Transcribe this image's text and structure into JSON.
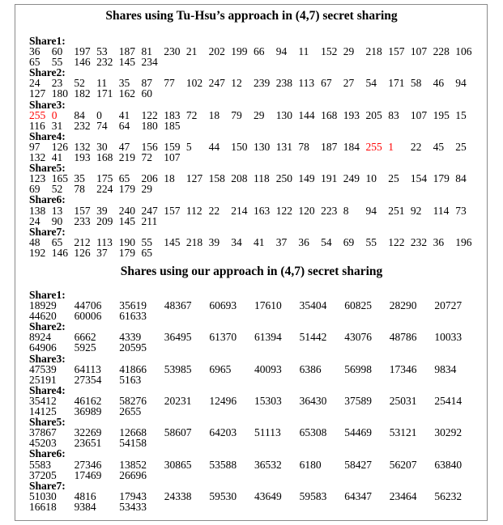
{
  "title_tuhsu": "Shares using Tu-Hsu’s approach in (4,7) secret sharing",
  "title_ours": "Shares using our approach in (4,7) secret sharing",
  "highlight_color": "#ff0000",
  "tuhsu_shares": [
    {
      "label": "Share1:",
      "values": [
        36,
        60,
        197,
        53,
        187,
        81,
        230,
        21,
        202,
        199,
        66,
        94,
        11,
        152,
        29,
        218,
        157,
        107,
        228,
        106,
        65,
        55,
        146,
        232,
        145,
        234
      ],
      "highlight": []
    },
    {
      "label": "Share2:",
      "values": [
        24,
        23,
        52,
        11,
        35,
        87,
        77,
        102,
        247,
        12,
        239,
        238,
        113,
        67,
        27,
        54,
        171,
        58,
        46,
        94,
        127,
        180,
        182,
        171,
        162,
        60
      ],
      "highlight": []
    },
    {
      "label": "Share3:",
      "values": [
        255,
        0,
        84,
        0,
        41,
        122,
        183,
        72,
        18,
        79,
        29,
        130,
        144,
        168,
        193,
        205,
        83,
        107,
        195,
        15,
        116,
        31,
        232,
        74,
        64,
        180,
        185
      ],
      "highlight": [
        0,
        1
      ]
    },
    {
      "label": "Share4:",
      "values": [
        97,
        126,
        132,
        30,
        47,
        156,
        159,
        5,
        44,
        150,
        130,
        131,
        78,
        187,
        184,
        255,
        1,
        22,
        45,
        25,
        132,
        41,
        193,
        168,
        219,
        72,
        107
      ],
      "highlight": [
        15,
        16
      ]
    },
    {
      "label": "Share5:",
      "values": [
        123,
        165,
        35,
        175,
        65,
        206,
        18,
        127,
        158,
        208,
        118,
        250,
        149,
        191,
        249,
        10,
        25,
        154,
        179,
        84,
        69,
        52,
        78,
        224,
        179,
        29
      ],
      "highlight": []
    },
    {
      "label": "Share6:",
      "values": [
        138,
        13,
        157,
        39,
        240,
        247,
        157,
        112,
        22,
        214,
        163,
        122,
        120,
        223,
        8,
        94,
        251,
        92,
        114,
        73,
        24,
        90,
        233,
        209,
        145,
        211
      ],
      "highlight": []
    },
    {
      "label": "Share7:",
      "values": [
        48,
        65,
        212,
        113,
        190,
        55,
        145,
        218,
        39,
        34,
        41,
        37,
        36,
        54,
        69,
        55,
        122,
        232,
        36,
        196,
        192,
        146,
        126,
        37,
        179,
        65
      ],
      "highlight": []
    }
  ],
  "our_shares": [
    {
      "label": "Share1:",
      "values": [
        18929,
        44706,
        35619,
        48367,
        60693,
        17610,
        35404,
        60825,
        28290,
        20727,
        44620,
        60006,
        61633
      ]
    },
    {
      "label": "Share2:",
      "values": [
        8924,
        6662,
        4339,
        36495,
        61370,
        61394,
        51442,
        43076,
        48786,
        10033,
        64906,
        5925,
        20595
      ]
    },
    {
      "label": "Share3:",
      "values": [
        47539,
        64113,
        41866,
        53985,
        6965,
        40093,
        6386,
        56998,
        17346,
        9834,
        25191,
        27354,
        5163
      ]
    },
    {
      "label": "Share4:",
      "values": [
        35412,
        46162,
        58276,
        20231,
        12496,
        15303,
        36430,
        37589,
        25031,
        25414,
        14125,
        36989,
        2655
      ]
    },
    {
      "label": "Share5:",
      "values": [
        37867,
        32269,
        12668,
        58607,
        64203,
        51113,
        65308,
        54469,
        53121,
        30292,
        45203,
        23651,
        54158
      ]
    },
    {
      "label": "Share6:",
      "values": [
        5583,
        27346,
        13852,
        30865,
        53588,
        36532,
        6180,
        58427,
        56207,
        63840,
        37205,
        17469,
        26696
      ]
    },
    {
      "label": "Share7:",
      "values": [
        51030,
        4816,
        17943,
        24338,
        59530,
        43649,
        59583,
        64347,
        23464,
        56232,
        16618,
        9384,
        53433
      ]
    }
  ]
}
